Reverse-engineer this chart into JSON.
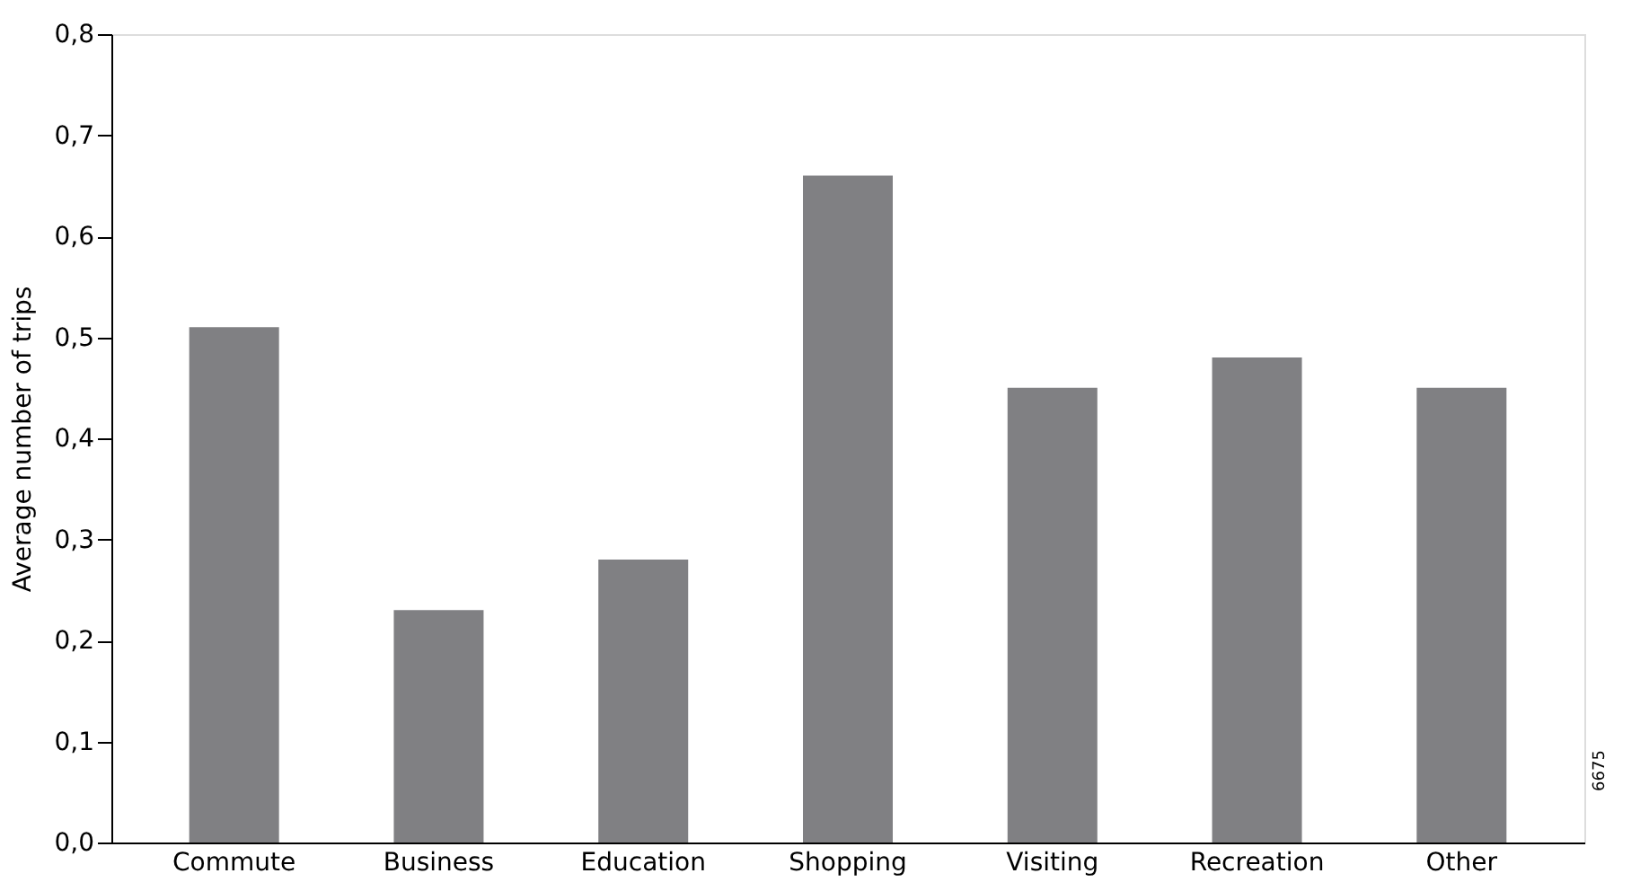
{
  "chart_data": {
    "type": "bar",
    "ylabel": "Average number of trips",
    "categories": [
      "Commute",
      "Business",
      "Education",
      "Shopping",
      "Visiting",
      "Recreation",
      "Other"
    ],
    "values": [
      0.51,
      0.23,
      0.28,
      0.66,
      0.45,
      0.48,
      0.45
    ],
    "color": "#808083",
    "ylim": [
      0,
      0.8
    ],
    "yticks": [
      {
        "value": 0,
        "label": "0,0"
      },
      {
        "value": 0.1,
        "label": "0,1"
      },
      {
        "value": 0.2,
        "label": "0,2"
      },
      {
        "value": 0.3,
        "label": "0,3"
      },
      {
        "value": 0.4,
        "label": "0,4"
      },
      {
        "value": 0.5,
        "label": "0,5"
      },
      {
        "value": 0.6,
        "label": "0,6"
      },
      {
        "value": 0.7,
        "label": "0,7"
      },
      {
        "value": 0.8,
        "label": "0,8"
      }
    ],
    "grid": false,
    "annotations": [
      "6675"
    ]
  }
}
